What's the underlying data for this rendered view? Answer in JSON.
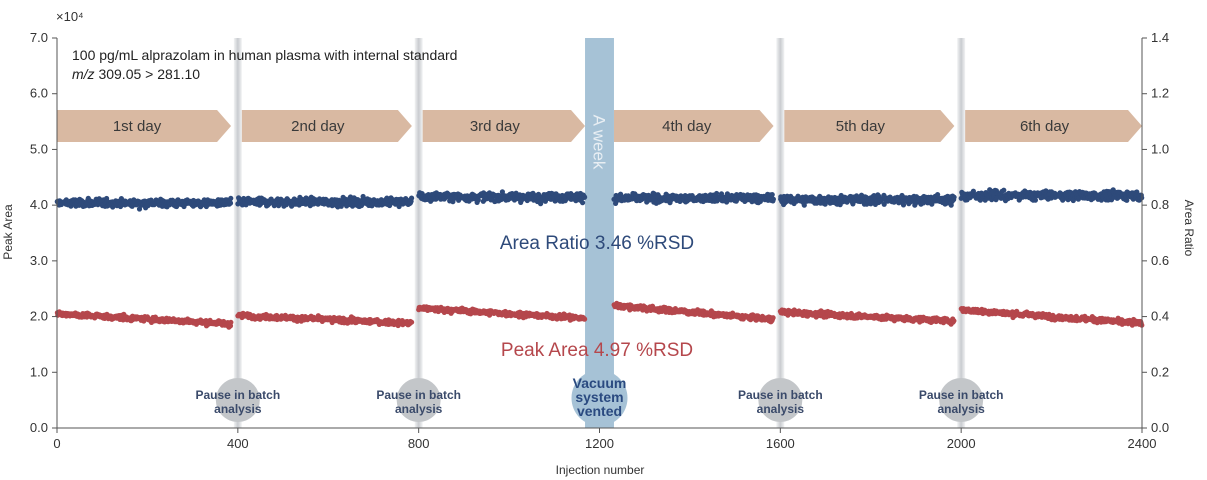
{
  "chart_data": {
    "type": "scatter",
    "xlabel": "Injection number",
    "ylabel_left": "Peak Area",
    "ylabel_right": "Area Ratio",
    "y_multiplier": "×10⁴",
    "xlim": [
      0,
      2400
    ],
    "ylim_left": [
      0,
      7
    ],
    "ylim_right": [
      0,
      1.4
    ],
    "x_ticks": [
      "0",
      "400",
      "800",
      "1200",
      "1600",
      "2000",
      "2400"
    ],
    "x_tick_values": [
      0,
      400,
      800,
      1200,
      1600,
      2000,
      2400
    ],
    "y_left_ticks": [
      "0.0",
      "1.0",
      "2.0",
      "3.0",
      "4.0",
      "5.0",
      "6.0",
      "7.0"
    ],
    "y_left_tick_values": [
      0,
      1,
      2,
      3,
      4,
      5,
      6,
      7
    ],
    "y_right_ticks": [
      "0.0",
      "0.2",
      "0.4",
      "0.6",
      "0.8",
      "1.0",
      "1.2",
      "1.4"
    ],
    "y_right_tick_values": [
      0,
      0.2,
      0.4,
      0.6,
      0.8,
      1.0,
      1.2,
      1.4
    ],
    "annotation_line1": "100 pg/mL alprazolam in human plasma with internal standard",
    "annotation_mz_italic": "m/z",
    "annotation_mz_rest": " 309.05 > 281.10",
    "days": [
      {
        "label": "1st day",
        "start": 0,
        "end": 385
      },
      {
        "label": "2nd day",
        "start": 400,
        "end": 785
      },
      {
        "label": "3rd day",
        "start": 800,
        "end": 1168
      },
      {
        "label": "4th day",
        "start": 1232,
        "end": 1585
      },
      {
        "label": "5th day",
        "start": 1600,
        "end": 1985
      },
      {
        "label": "6th day",
        "start": 2000,
        "end": 2400
      }
    ],
    "pauses": [
      {
        "x": 400,
        "label_line1": "Pause in batch",
        "label_line2": "analysis"
      },
      {
        "x": 800,
        "label_line1": "Pause in batch",
        "label_line2": "analysis"
      },
      {
        "x": 1600,
        "label_line1": "Pause in batch",
        "label_line2": "analysis"
      },
      {
        "x": 2000,
        "label_line1": "Pause in batch",
        "label_line2": "analysis"
      }
    ],
    "vent": {
      "x_start": 1168,
      "x_end": 1232,
      "week_label": "A week",
      "label_lines": [
        "Vacuum",
        "system",
        "vented"
      ]
    },
    "series": [
      {
        "name": "Area Ratio",
        "axis": "right",
        "label": "Area Ratio 3.46 %RSD",
        "color": "#2e4a7a",
        "segments": [
          {
            "x_start": 0,
            "x_end": 385,
            "mean": 0.808,
            "spread": 0.055
          },
          {
            "x_start": 400,
            "x_end": 785,
            "mean": 0.812,
            "spread": 0.055
          },
          {
            "x_start": 800,
            "x_end": 1168,
            "mean": 0.83,
            "spread": 0.06
          },
          {
            "x_start": 1232,
            "x_end": 1585,
            "mean": 0.825,
            "spread": 0.055
          },
          {
            "x_start": 1600,
            "x_end": 1985,
            "mean": 0.82,
            "spread": 0.06
          },
          {
            "x_start": 2000,
            "x_end": 2400,
            "mean": 0.835,
            "spread": 0.06
          }
        ]
      },
      {
        "name": "Peak Area",
        "axis": "left",
        "label": "Peak Area 4.97 %RSD",
        "color": "#b5474c",
        "segments": [
          {
            "x_start": 0,
            "x_end": 385,
            "start": 2.05,
            "end": 1.87,
            "spread": 0.18
          },
          {
            "x_start": 400,
            "x_end": 785,
            "start": 2.02,
            "end": 1.88,
            "spread": 0.18
          },
          {
            "x_start": 800,
            "x_end": 1168,
            "start": 2.15,
            "end": 1.97,
            "spread": 0.18
          },
          {
            "x_start": 1232,
            "x_end": 1585,
            "start": 2.2,
            "end": 1.95,
            "spread": 0.18
          },
          {
            "x_start": 1600,
            "x_end": 1985,
            "start": 2.08,
            "end": 1.92,
            "spread": 0.18
          },
          {
            "x_start": 2000,
            "x_end": 2400,
            "start": 2.12,
            "end": 1.88,
            "spread": 0.18
          }
        ]
      }
    ]
  },
  "colors": {
    "arrow_fill": "#d9b9a2",
    "vent_band": "#a6c2d6",
    "pause_bar": "#d6d9dc",
    "pause_circle": "#c3c6c9",
    "axis": "#555555"
  }
}
